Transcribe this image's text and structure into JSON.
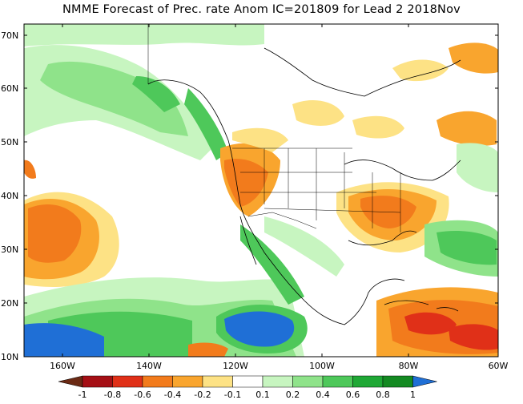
{
  "title": "NMME Forecast of Prec. rate Anom IC=201809 for Lead 2 2018Nov",
  "latitude_ticks": [
    "70N",
    "60N",
    "50N",
    "40N",
    "30N",
    "20N",
    "10N"
  ],
  "longitude_ticks": [
    "160W",
    "140W",
    "120W",
    "100W",
    "80W",
    "60W"
  ],
  "colorbar": {
    "levels": [
      "-1",
      "-0.8",
      "-0.6",
      "-0.4",
      "-0.2",
      "-0.1",
      "0.1",
      "0.2",
      "0.4",
      "0.6",
      "0.8",
      "1"
    ],
    "colors": [
      "#6b2a14",
      "#a50f15",
      "#e03018",
      "#f27b1c",
      "#f9a52e",
      "#fde285",
      "#ffffff",
      "#c7f5c0",
      "#8fe38a",
      "#4ec85a",
      "#1fa835",
      "#148a22",
      "#1f6fd6"
    ]
  },
  "map_colors": {
    "ocean_land_background": "#ffffff",
    "coastline": "#000000"
  }
}
